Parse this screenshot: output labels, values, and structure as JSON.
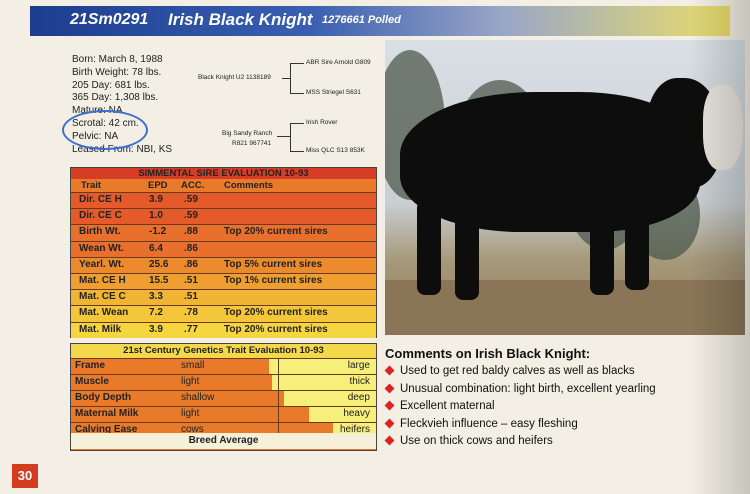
{
  "header": {
    "reg": "21Sm0291",
    "name": "Irish Black Knight",
    "number": "1276661 Polled"
  },
  "info": {
    "born": "Born: March 8, 1988",
    "birth_weight": "Birth Weight: 78 lbs.",
    "day205": "205 Day: 681 lbs.",
    "day365": "365 Day: 1,308 lbs.",
    "mature": "Mature: NA",
    "scrotal": "Scrotal: 42 cm.",
    "pelvic": "Pelvic: NA",
    "leased": "Leased From: NBI, KS"
  },
  "pedigree": {
    "sire": "Black Knight U2 1138189",
    "sire_sire": "ABR Sire Arnold G809",
    "sire_dam": "MSS Striegel S631",
    "dam1": "Big Sandy Ranch",
    "dam2": "R821 967741",
    "dam_sire": "Irish Rover",
    "dam_dam": "Miss QLC S13 853K"
  },
  "simmental": {
    "title": "SIMMENTAL SIRE EVALUATION 10-93",
    "headers": {
      "trait": "Trait",
      "epd": "EPD",
      "acc": "ACC.",
      "comments": "Comments"
    },
    "rows": [
      {
        "trait": "Dir. CE H",
        "epd": "3.9",
        "acc": ".59",
        "comment": "",
        "color": "#e55a2b"
      },
      {
        "trait": "Dir. CE C",
        "epd": "1.0",
        "acc": ".59",
        "comment": "",
        "color": "#e55a2b"
      },
      {
        "trait": "Birth Wt.",
        "epd": "-1.2",
        "acc": ".88",
        "comment": "Top 20% current sires",
        "color": "#e8702c"
      },
      {
        "trait": "Wean Wt.",
        "epd": "6.4",
        "acc": ".86",
        "comment": "",
        "color": "#e8702c"
      },
      {
        "trait": "Yearl. Wt.",
        "epd": "25.6",
        "acc": ".86",
        "comment": "Top 5% current sires",
        "color": "#ec8a2e"
      },
      {
        "trait": "Mat. CE H",
        "epd": "15.5",
        "acc": ".51",
        "comment": "Top 1% current sires",
        "color": "#ef9e31"
      },
      {
        "trait": "Mat. CE C",
        "epd": "3.3",
        "acc": ".51",
        "comment": "",
        "color": "#f2b435"
      },
      {
        "trait": "Mat. Wean",
        "epd": "7.2",
        "acc": ".78",
        "comment": "Top 20% current sires",
        "color": "#f4c63a"
      },
      {
        "trait": "Mat. Milk",
        "epd": "3.9",
        "acc": ".77",
        "comment": "Top 20% current sires",
        "color": "#f5d63f"
      }
    ]
  },
  "century": {
    "title": "21st Century Genetics Trait Evaluation 10-93",
    "rows": [
      {
        "trait": "Frame",
        "low": "small",
        "high": "large",
        "level": 0.65
      },
      {
        "trait": "Muscle",
        "low": "light",
        "high": "thick",
        "level": 0.66
      },
      {
        "trait": "Body Depth",
        "low": "shallow",
        "high": "deep",
        "level": 0.7
      },
      {
        "trait": "Maternal Milk",
        "low": "light",
        "high": "heavy",
        "level": 0.78
      },
      {
        "trait": "Calving Ease",
        "low": "cows",
        "high": "heifers",
        "level": 0.86
      }
    ],
    "average": "Breed Average"
  },
  "comments": {
    "title": "Comments on Irish Black Knight:",
    "items": [
      "Used to get red baldy calves as well as blacks",
      "Unusual combination: light birth, excellent yearling",
      "Excellent maternal",
      "Fleckvieh influence – easy fleshing",
      "Use on thick cows and heifers"
    ]
  },
  "page_number": "30",
  "colors": {
    "accent_red": "#d33d1f",
    "header_blue": "#1d3d8f",
    "circle_blue": "#3a6fd1"
  }
}
